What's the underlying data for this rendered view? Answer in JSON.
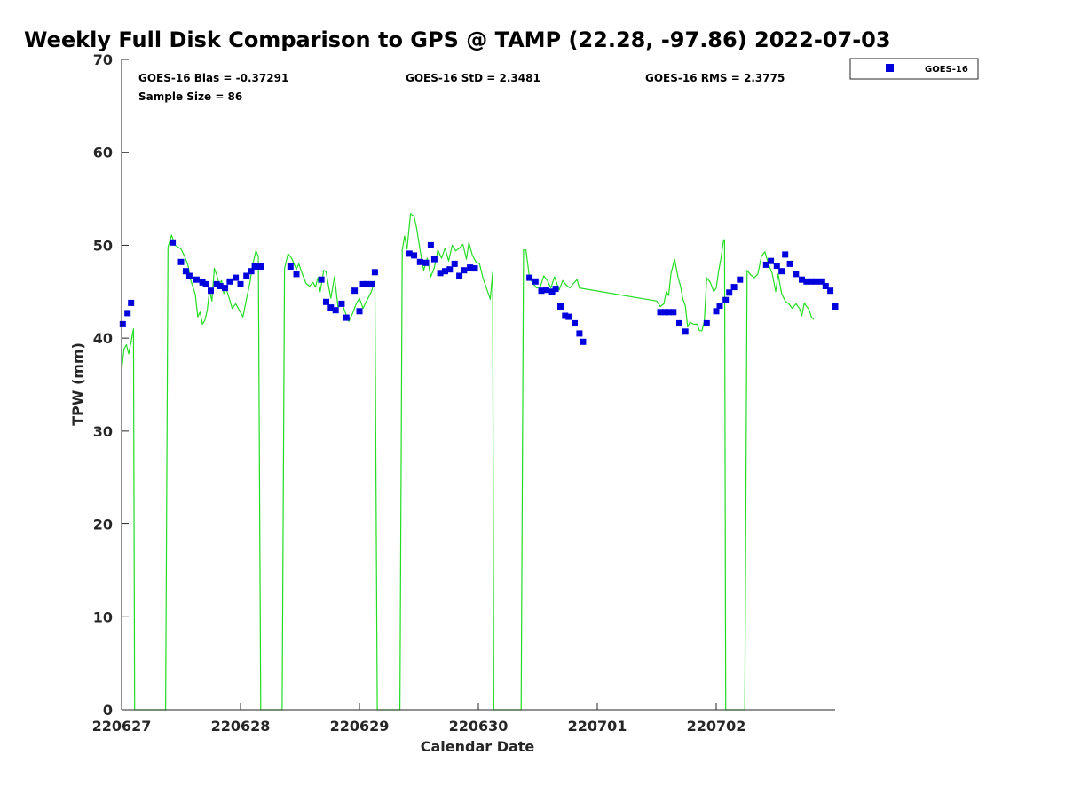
{
  "chart_data": {
    "type": "line",
    "title": "Weekly Full Disk Comparison to GPS @ TAMP (22.28, -97.86) 2022-07-03",
    "xlabel": "Calendar Date",
    "ylabel": "TPW (mm)",
    "xlim": [
      0,
      6
    ],
    "ylim": [
      0,
      70
    ],
    "x_ticks": [
      0,
      1,
      2,
      3,
      4,
      5
    ],
    "x_tick_labels": [
      "220627",
      "220628",
      "220629",
      "220630",
      "220701",
      "220702"
    ],
    "y_ticks": [
      0,
      10,
      20,
      30,
      40,
      50,
      60,
      70
    ],
    "y_tick_labels": [
      "0",
      "10",
      "20",
      "30",
      "40",
      "50",
      "60",
      "70"
    ],
    "x_unit": "days since 220627 00:00",
    "grid": false,
    "legend_position": "top-right",
    "legend_marker_color": "#0000dd",
    "legend_label": "GOES-16",
    "annotations": [
      "GOES-16 Bias = -0.37291",
      "GOES-16 StD = 2.3481",
      "GOES-16 RMS = 2.3775",
      "Sample Size = 86"
    ],
    "series": [
      {
        "name": "",
        "role": "GPS reference line",
        "color": "#22dd22",
        "points": [
          [
            0,
            36.5
          ],
          [
            0.02,
            38.8
          ],
          [
            0.04,
            39.3
          ],
          [
            0.06,
            38.3
          ],
          [
            0.08,
            39.6
          ],
          [
            0.1,
            41
          ],
          [
            0.11,
            0
          ],
          [
            0.37,
            0
          ],
          [
            0.39,
            49.8
          ],
          [
            0.42,
            51.1
          ],
          [
            0.45,
            50
          ],
          [
            0.5,
            49.6
          ],
          [
            0.53,
            48.8
          ],
          [
            0.56,
            47.8
          ],
          [
            0.58,
            46.3
          ],
          [
            0.62,
            44.7
          ],
          [
            0.64,
            42.3
          ],
          [
            0.66,
            42.8
          ],
          [
            0.68,
            41.5
          ],
          [
            0.7,
            41.9
          ],
          [
            0.72,
            43
          ],
          [
            0.74,
            45.2
          ],
          [
            0.76,
            44
          ],
          [
            0.78,
            47.5
          ],
          [
            0.8,
            46.8
          ],
          [
            0.82,
            45.8
          ],
          [
            0.84,
            46.2
          ],
          [
            0.86,
            44.8
          ],
          [
            0.88,
            45.3
          ],
          [
            0.9,
            44.5
          ],
          [
            0.93,
            43.2
          ],
          [
            0.96,
            43.7
          ],
          [
            0.99,
            43
          ],
          [
            1.02,
            42.3
          ],
          [
            1.05,
            44.2
          ],
          [
            1.08,
            46
          ],
          [
            1.1,
            47.8
          ],
          [
            1.13,
            49.4
          ],
          [
            1.15,
            48.8
          ],
          [
            1.17,
            0
          ],
          [
            1.35,
            0
          ],
          [
            1.37,
            47.5
          ],
          [
            1.4,
            49.1
          ],
          [
            1.43,
            48.6
          ],
          [
            1.45,
            48
          ],
          [
            1.47,
            47.4
          ],
          [
            1.49,
            48
          ],
          [
            1.52,
            46.9
          ],
          [
            1.55,
            45.9
          ],
          [
            1.58,
            45.6
          ],
          [
            1.61,
            46
          ],
          [
            1.63,
            45.5
          ],
          [
            1.65,
            46.5
          ],
          [
            1.67,
            45
          ],
          [
            1.7,
            47.3
          ],
          [
            1.72,
            47.1
          ],
          [
            1.74,
            45.6
          ],
          [
            1.76,
            44.3
          ],
          [
            1.79,
            46.6
          ],
          [
            1.82,
            43.3
          ],
          [
            1.85,
            43.9
          ],
          [
            1.88,
            42.8
          ],
          [
            1.91,
            41.8
          ],
          [
            1.94,
            42.6
          ],
          [
            1.97,
            43.6
          ],
          [
            2.0,
            44.3
          ],
          [
            2.03,
            43.2
          ],
          [
            2.06,
            44
          ],
          [
            2.1,
            45
          ],
          [
            2.13,
            46.2
          ],
          [
            2.15,
            0
          ],
          [
            2.34,
            0
          ],
          [
            2.36,
            49.5
          ],
          [
            2.38,
            51
          ],
          [
            2.4,
            49.6
          ],
          [
            2.43,
            53.4
          ],
          [
            2.46,
            53.1
          ],
          [
            2.48,
            51.9
          ],
          [
            2.51,
            49.5
          ],
          [
            2.54,
            47.3
          ],
          [
            2.57,
            48.6
          ],
          [
            2.6,
            46.6
          ],
          [
            2.63,
            47.6
          ],
          [
            2.66,
            49.5
          ],
          [
            2.69,
            48.6
          ],
          [
            2.72,
            49.7
          ],
          [
            2.75,
            48.3
          ],
          [
            2.78,
            50
          ],
          [
            2.81,
            49.4
          ],
          [
            2.84,
            49.7
          ],
          [
            2.87,
            50.1
          ],
          [
            2.9,
            48.5
          ],
          [
            2.92,
            50.3
          ],
          [
            2.95,
            48.9
          ],
          [
            2.98,
            48.2
          ],
          [
            3.01,
            48
          ],
          [
            3.04,
            46.4
          ],
          [
            3.07,
            45.3
          ],
          [
            3.1,
            44.2
          ],
          [
            3.12,
            47.1
          ],
          [
            3.13,
            0
          ],
          [
            3.36,
            0
          ],
          [
            3.38,
            49.5
          ],
          [
            3.4,
            49.5
          ],
          [
            3.43,
            46.5
          ],
          [
            3.46,
            45.9
          ],
          [
            3.49,
            45.4
          ],
          [
            3.52,
            45.5
          ],
          [
            3.55,
            46.7
          ],
          [
            3.58,
            46.2
          ],
          [
            3.61,
            45.4
          ],
          [
            3.64,
            46.6
          ],
          [
            3.66,
            45.9
          ],
          [
            3.68,
            45.2
          ],
          [
            3.71,
            46.2
          ],
          [
            3.74,
            45.7
          ],
          [
            3.77,
            45.4
          ],
          [
            3.8,
            45.9
          ],
          [
            3.83,
            46.3
          ],
          [
            3.85,
            45.4
          ],
          [
            4.5,
            44
          ],
          [
            4.53,
            43.4
          ],
          [
            4.56,
            43.7
          ],
          [
            4.58,
            45
          ],
          [
            4.6,
            44.6
          ],
          [
            4.62,
            47
          ],
          [
            4.65,
            48.5
          ],
          [
            4.68,
            46.5
          ],
          [
            4.7,
            45.6
          ],
          [
            4.72,
            44.2
          ],
          [
            4.74,
            43.5
          ],
          [
            4.76,
            41.2
          ],
          [
            4.78,
            41.7
          ],
          [
            4.81,
            41.5
          ],
          [
            4.84,
            41.5
          ],
          [
            4.86,
            40.8
          ],
          [
            4.88,
            40.8
          ],
          [
            4.9,
            41.8
          ],
          [
            4.92,
            46.5
          ],
          [
            4.95,
            46
          ],
          [
            4.98,
            45
          ],
          [
            5.0,
            45.4
          ],
          [
            5.02,
            47.2
          ],
          [
            5.04,
            48.6
          ],
          [
            5.06,
            50.4
          ],
          [
            5.07,
            50.6
          ],
          [
            5.08,
            0
          ],
          [
            5.24,
            0
          ],
          [
            5.26,
            47.3
          ],
          [
            5.29,
            46.8
          ],
          [
            5.32,
            46.5
          ],
          [
            5.35,
            46.9
          ],
          [
            5.38,
            48.8
          ],
          [
            5.41,
            49.3
          ],
          [
            5.44,
            47.9
          ],
          [
            5.47,
            47
          ],
          [
            5.5,
            45
          ],
          [
            5.52,
            46.9
          ],
          [
            5.55,
            44.8
          ],
          [
            5.58,
            44
          ],
          [
            5.61,
            43.7
          ],
          [
            5.64,
            43.2
          ],
          [
            5.67,
            43.7
          ],
          [
            5.7,
            43.2
          ],
          [
            5.72,
            42.4
          ],
          [
            5.74,
            43.8
          ],
          [
            5.76,
            43.4
          ],
          [
            5.78,
            43.1
          ],
          [
            5.8,
            42.3
          ],
          [
            5.82,
            42
          ]
        ]
      },
      {
        "name": "GOES-16",
        "role": "satellite retrievals",
        "color": "#0000dd",
        "points": [
          [
            0.01,
            41.5
          ],
          [
            0.05,
            42.7
          ],
          [
            0.08,
            43.8
          ],
          [
            0.43,
            50.3
          ],
          [
            0.5,
            48.2
          ],
          [
            0.54,
            47.2
          ],
          [
            0.57,
            46.7
          ],
          [
            0.63,
            46.3
          ],
          [
            0.68,
            46
          ],
          [
            0.71,
            45.8
          ],
          [
            0.75,
            45.1
          ],
          [
            0.8,
            45.8
          ],
          [
            0.83,
            45.6
          ],
          [
            0.87,
            45.4
          ],
          [
            0.91,
            46.1
          ],
          [
            0.96,
            46.5
          ],
          [
            1.0,
            45.8
          ],
          [
            1.05,
            46.7
          ],
          [
            1.09,
            47.2
          ],
          [
            1.12,
            47.7
          ],
          [
            1.17,
            47.7
          ],
          [
            1.42,
            47.7
          ],
          [
            1.47,
            46.9
          ],
          [
            1.68,
            46.3
          ],
          [
            1.72,
            43.9
          ],
          [
            1.76,
            43.3
          ],
          [
            1.8,
            43
          ],
          [
            1.85,
            43.7
          ],
          [
            1.89,
            42.2
          ],
          [
            1.96,
            45.1
          ],
          [
            2.0,
            42.9
          ],
          [
            2.03,
            45.8
          ],
          [
            2.06,
            45.8
          ],
          [
            2.1,
            45.8
          ],
          [
            2.13,
            47.1
          ],
          [
            2.42,
            49.1
          ],
          [
            2.46,
            48.9
          ],
          [
            2.51,
            48.2
          ],
          [
            2.56,
            48.1
          ],
          [
            2.6,
            50
          ],
          [
            2.63,
            48.5
          ],
          [
            2.68,
            47
          ],
          [
            2.72,
            47.2
          ],
          [
            2.76,
            47.4
          ],
          [
            2.8,
            48
          ],
          [
            2.84,
            46.7
          ],
          [
            2.88,
            47.3
          ],
          [
            2.93,
            47.6
          ],
          [
            2.97,
            47.5
          ],
          [
            3.43,
            46.5
          ],
          [
            3.48,
            46.1
          ],
          [
            3.53,
            45.1
          ],
          [
            3.57,
            45.2
          ],
          [
            3.62,
            45
          ],
          [
            3.65,
            45.3
          ],
          [
            3.69,
            43.4
          ],
          [
            3.73,
            42.4
          ],
          [
            3.76,
            42.3
          ],
          [
            3.81,
            41.6
          ],
          [
            3.85,
            40.5
          ],
          [
            3.88,
            39.6
          ],
          [
            4.53,
            42.8
          ],
          [
            4.57,
            42.8
          ],
          [
            4.6,
            42.8
          ],
          [
            4.64,
            42.8
          ],
          [
            4.69,
            41.6
          ],
          [
            4.74,
            40.7
          ],
          [
            4.92,
            41.6
          ],
          [
            5.0,
            42.9
          ],
          [
            5.03,
            43.5
          ],
          [
            5.08,
            44.1
          ],
          [
            5.11,
            44.9
          ],
          [
            5.15,
            45.5
          ],
          [
            5.2,
            46.3
          ],
          [
            5.42,
            47.9
          ],
          [
            5.46,
            48.3
          ],
          [
            5.51,
            47.8
          ],
          [
            5.55,
            47.2
          ],
          [
            5.58,
            49
          ],
          [
            5.62,
            48
          ],
          [
            5.67,
            46.9
          ],
          [
            5.72,
            46.3
          ],
          [
            5.76,
            46.1
          ],
          [
            5.8,
            46.1
          ],
          [
            5.84,
            46.1
          ],
          [
            5.89,
            46.1
          ],
          [
            5.92,
            45.6
          ],
          [
            5.96,
            45.1
          ],
          [
            6.0,
            43.4
          ]
        ]
      }
    ]
  }
}
